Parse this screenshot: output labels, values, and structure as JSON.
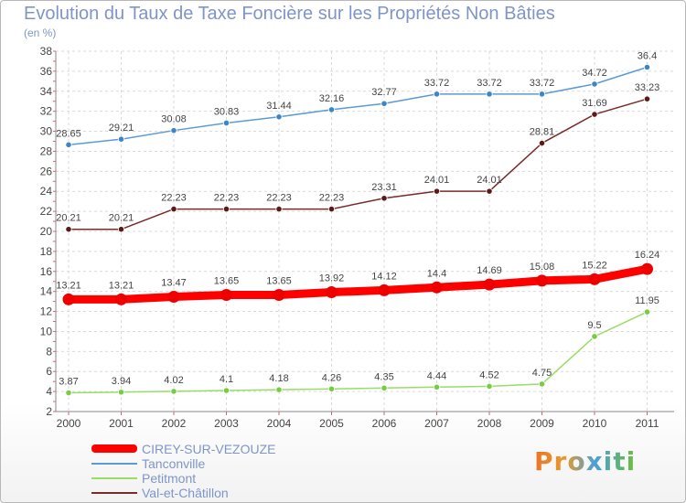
{
  "chart_data": {
    "type": "line",
    "title": "Evolution du Taux de Taxe Foncière sur les Propriétés Non Bâties",
    "unit_label": "(en %)",
    "x": [
      "2000",
      "2001",
      "2002",
      "2003",
      "2004",
      "2005",
      "2006",
      "2007",
      "2008",
      "2009",
      "2010",
      "2011"
    ],
    "ylim": [
      2,
      38
    ],
    "yticks": [
      2,
      4,
      6,
      8,
      10,
      12,
      14,
      16,
      18,
      20,
      22,
      24,
      26,
      28,
      30,
      32,
      34,
      36,
      38
    ],
    "grid": true,
    "legend_position": "bottom-left",
    "series": [
      {
        "name": "Tanconville",
        "color": "#5b9bd5",
        "marker": "#3c86c8",
        "values": [
          28.65,
          29.21,
          30.08,
          30.83,
          31.44,
          32.16,
          32.77,
          33.72,
          33.72,
          33.72,
          34.72,
          36.4
        ],
        "labels": [
          "28.65",
          "29.21",
          "30.08",
          "30.83",
          "31.44",
          "32.16",
          "32.77",
          "33.72",
          "33.72",
          "33.72",
          "34.72",
          "36.4"
        ]
      },
      {
        "name": "Val-et-Châtillon",
        "color": "#7a2a2a",
        "marker": "#5a1a1a",
        "values": [
          20.21,
          20.21,
          22.23,
          22.23,
          22.23,
          22.23,
          23.31,
          24.01,
          24.01,
          28.81,
          31.69,
          33.23
        ],
        "labels": [
          "20.21",
          "20.21",
          "22.23",
          "22.23",
          "22.23",
          "22.23",
          "23.31",
          "24.01",
          "24.01",
          "28.81",
          "31.69",
          "33.23"
        ]
      },
      {
        "name": "CIREY-SUR-VEZOUZE",
        "color": "#ff0000",
        "marker": "#ee0000",
        "bold": true,
        "values": [
          13.21,
          13.21,
          13.47,
          13.65,
          13.65,
          13.92,
          14.12,
          14.4,
          14.69,
          15.08,
          15.22,
          16.24
        ],
        "labels": [
          "13.21",
          "13.21",
          "13.47",
          "13.65",
          "13.65",
          "13.92",
          "14.12",
          "14.4",
          "14.69",
          "15.08",
          "15.22",
          "16.24"
        ]
      },
      {
        "name": "Petitmont",
        "color": "#99dd66",
        "marker": "#77cc44",
        "values": [
          3.87,
          3.94,
          4.02,
          4.1,
          4.18,
          4.26,
          4.35,
          4.44,
          4.52,
          4.75,
          9.5,
          11.95
        ],
        "labels": [
          "3.87",
          "3.94",
          "4.02",
          "4.1",
          "4.18",
          "4.26",
          "4.35",
          "4.44",
          "4.52",
          "4.75",
          "9.5",
          "11.95"
        ]
      }
    ],
    "legend": [
      "CIREY-SUR-VEZOUZE",
      "Tanconville",
      "Petitmont",
      "Val-et-Châtillon"
    ]
  },
  "logo_text": "Proxiti"
}
